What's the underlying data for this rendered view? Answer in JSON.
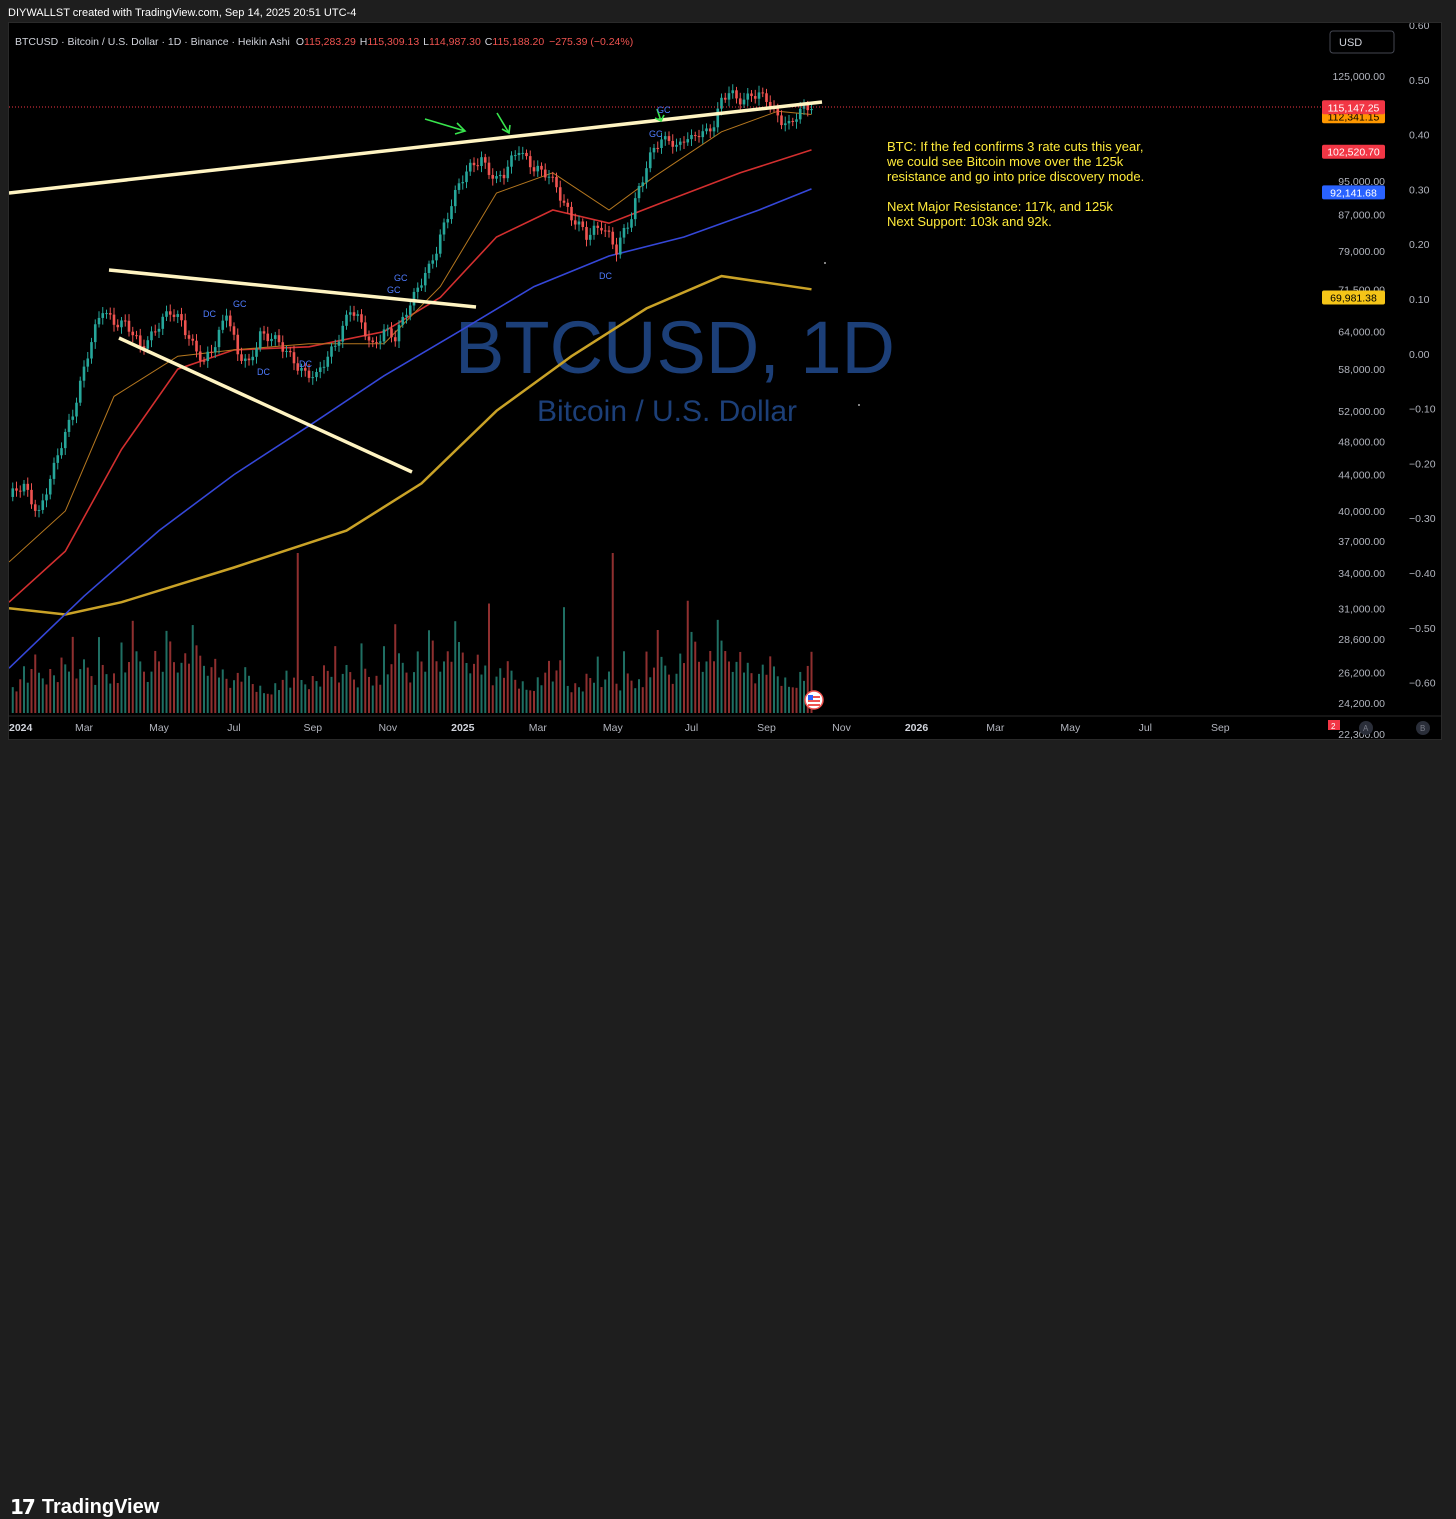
{
  "header": {
    "attribution": "DIYWALLST created with TradingView.com, Sep 14, 2025 20:51 UTC-4"
  },
  "legend": {
    "symbol_line": "BTCUSD · Bitcoin / U.S. Dollar · 1D · Binance · Heikin Ashi",
    "o_label": "O",
    "o_value": "115,283.29",
    "h_label": "H",
    "h_value": "115,309.13",
    "l_label": "L",
    "l_value": "114,987.30",
    "c_label": "C",
    "c_value": "115,188.20",
    "change": "−275.39 (−0.24%)"
  },
  "currency_button": "USD",
  "watermark": {
    "title": "BTCUSD, 1D",
    "subtitle": "Bitcoin / U.S. Dollar"
  },
  "annotation": {
    "line1": "BTC: If the fed confirms 3 rate cuts this year,",
    "line2": "we could see Bitcoin move over the 125k",
    "line3": "resistance and go into price discovery mode.",
    "line4": "Next Major Resistance: 117k, and 125k",
    "line5": "Next Support: 103k and 92k."
  },
  "chart_labels": {
    "gc": "GC",
    "dc": "DC"
  },
  "price_badges": [
    {
      "text": "115,147.25",
      "bg": "#f23645",
      "color": "#ffffff"
    },
    {
      "text": "112,341.15",
      "bg": "#ff9800",
      "color": "#000000"
    },
    {
      "text": "102,520.70",
      "bg": "#f23645",
      "color": "#ffffff"
    },
    {
      "text": "92,141.68",
      "bg": "#2962ff",
      "color": "#ffffff"
    },
    {
      "text": "69,981.38",
      "bg": "#f5c518",
      "color": "#000000"
    }
  ],
  "footer_buttons": {
    "a": "A",
    "b": "B",
    "badge": "2"
  },
  "brand": {
    "name": "TradingView",
    "mark": "17"
  },
  "colors": {
    "bull": "#26a69a",
    "bear": "#ef5350",
    "ma_red": "#d32f2f",
    "ma_blue": "#3547d8",
    "ma_gold": "#c9a227",
    "ma_orange": "#b5771f",
    "trendline": "#fff4c2",
    "annotation": "#ffeb3b"
  },
  "chart_data": {
    "type": "candlestick",
    "style": "Heikin Ashi",
    "log_scale": true,
    "grid": false,
    "price_axis_ticks": [
      "125,000.00",
      "95,000.00",
      "87,000.00",
      "79,000.00",
      "71,500.00",
      "64,000.00",
      "58,000.00",
      "52,000.00",
      "48,000.00",
      "44,000.00",
      "40,000.00",
      "37,000.00",
      "34,000.00",
      "31,000.00",
      "28,600.00",
      "26,200.00",
      "24,200.00",
      "22,300.00"
    ],
    "percent_axis_ticks": [
      "0.60",
      "0.50",
      "0.40",
      "0.30",
      "0.20",
      "0.10",
      "0.00",
      "−0.10",
      "−0.20",
      "−0.30",
      "−0.40",
      "−0.50",
      "−0.60"
    ],
    "time_axis_ticks": [
      "2024",
      "Mar",
      "May",
      "Jul",
      "Sep",
      "Nov",
      "2025",
      "Mar",
      "May",
      "Jul",
      "Sep",
      "Nov",
      "2026",
      "Mar",
      "May",
      "Jul",
      "Sep"
    ],
    "price_path": [
      [
        0,
        41500
      ],
      [
        4,
        42500
      ],
      [
        8,
        40000
      ],
      [
        12,
        44500
      ],
      [
        17,
        52000
      ],
      [
        22,
        62000
      ],
      [
        25,
        68000
      ],
      [
        28,
        66000
      ],
      [
        31,
        65000
      ],
      [
        35,
        61500
      ],
      [
        39,
        64500
      ],
      [
        43,
        67000
      ],
      [
        46,
        66000
      ],
      [
        49,
        62000
      ],
      [
        52,
        58500
      ],
      [
        55,
        62000
      ],
      [
        58,
        68000
      ],
      [
        61,
        60000
      ],
      [
        64,
        58500
      ],
      [
        67,
        64000
      ],
      [
        70,
        63000
      ],
      [
        73,
        61000
      ],
      [
        76,
        59500
      ],
      [
        79,
        57500
      ],
      [
        82,
        56500
      ],
      [
        85,
        60000
      ],
      [
        88,
        63500
      ],
      [
        91,
        67500
      ],
      [
        94,
        65000
      ],
      [
        97,
        62000
      ],
      [
        100,
        64000
      ],
      [
        103,
        62500
      ],
      [
        106,
        68000
      ],
      [
        109,
        72000
      ],
      [
        112,
        75000
      ],
      [
        114,
        79000
      ],
      [
        116,
        85000
      ],
      [
        118,
        90000
      ],
      [
        120,
        94000
      ],
      [
        122,
        96500
      ],
      [
        124,
        99000
      ],
      [
        126,
        101000
      ],
      [
        128,
        98000
      ],
      [
        130,
        95000
      ],
      [
        132,
        96000
      ],
      [
        134,
        100000
      ],
      [
        136,
        104000
      ],
      [
        138,
        101000
      ],
      [
        140,
        98000
      ],
      [
        142,
        96500
      ],
      [
        144,
        96000
      ],
      [
        146,
        94000
      ],
      [
        148,
        90000
      ],
      [
        150,
        86000
      ],
      [
        152,
        84000
      ],
      [
        154,
        82000
      ],
      [
        156,
        84000
      ],
      [
        158,
        85000
      ],
      [
        160,
        82000
      ],
      [
        162,
        78500
      ],
      [
        164,
        83000
      ],
      [
        166,
        87000
      ],
      [
        168,
        94000
      ],
      [
        170,
        98000
      ],
      [
        172,
        103000
      ],
      [
        174,
        105000
      ],
      [
        176,
        107000
      ],
      [
        178,
        104000
      ],
      [
        180,
        106000
      ],
      [
        182,
        105000
      ],
      [
        184,
        107500
      ],
      [
        186,
        108500
      ],
      [
        188,
        111000
      ],
      [
        190,
        117000
      ],
      [
        192,
        119000
      ],
      [
        194,
        117500
      ],
      [
        196,
        118000
      ],
      [
        198,
        120000
      ],
      [
        200,
        118500
      ],
      [
        202,
        117000
      ],
      [
        204,
        113500
      ],
      [
        206,
        112000
      ],
      [
        208,
        110500
      ],
      [
        210,
        112500
      ],
      [
        212,
        114000
      ],
      [
        214,
        115188
      ]
    ],
    "volume_series": [
      3,
      5,
      4,
      6,
      8,
      5,
      7,
      9,
      6,
      5,
      4,
      6,
      5,
      4,
      7,
      6,
      5,
      9,
      4,
      5,
      6,
      5,
      4,
      3,
      8,
      5,
      4,
      3,
      4,
      3,
      7,
      4,
      5,
      9,
      6,
      5,
      4,
      3,
      4,
      6,
      5,
      4,
      8,
      7,
      5,
      4,
      5,
      6,
      5,
      9,
      7,
      6,
      5,
      4,
      5,
      6,
      4,
      5,
      4,
      3,
      4,
      5,
      4,
      6,
      5,
      4,
      3,
      4,
      3,
      3
    ],
    "moving_averages": [
      {
        "color": "#c9a227"
      },
      {
        "color": "#3547d8"
      },
      {
        "color": "#d32f2f"
      },
      {
        "color": "#b5771f"
      }
    ]
  }
}
